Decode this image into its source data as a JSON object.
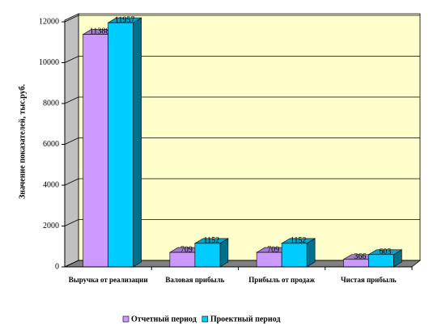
{
  "chart_data": {
    "type": "bar3d",
    "y_label": "Значение показателей, тыс.руб.",
    "categories": [
      "Выручка от реализации",
      "Валовая прибыль",
      "Прибыль от продаж",
      "Чистая прибыль"
    ],
    "series": [
      {
        "name": "Отчетный период",
        "color": "#cc99ff",
        "values": [
          11388,
          709,
          709,
          366
        ]
      },
      {
        "name": "Проектный период",
        "color": "#00ccff",
        "values": [
          11957,
          1152,
          1152,
          603
        ]
      }
    ],
    "ylim": [
      0,
      12000
    ],
    "yticks": [
      0,
      2000,
      4000,
      6000,
      8000,
      10000,
      12000
    ],
    "grid": true
  }
}
